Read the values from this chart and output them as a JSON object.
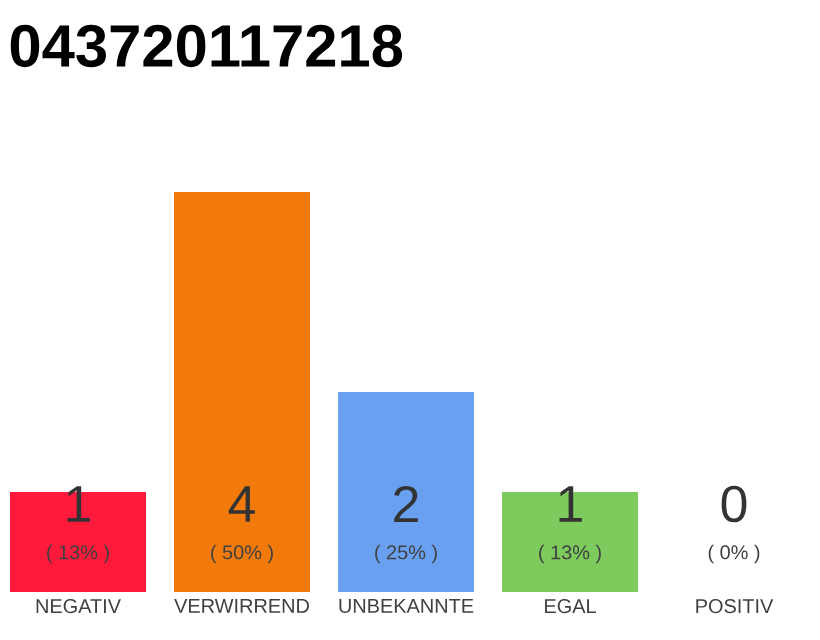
{
  "chart_data": {
    "type": "bar",
    "title": "043720117218",
    "categories": [
      "NEGATIV",
      "VERWIRREND",
      "UNBEKANNTE",
      "EGAL",
      "POSITIV"
    ],
    "values": [
      1,
      4,
      2,
      1,
      0
    ],
    "colors": [
      "#ff1a3c",
      "#f17a0b",
      "#6aa0f0",
      "#7ccb5c",
      null
    ],
    "ylim": [
      0,
      4
    ],
    "tick_labels": "x",
    "data_labels": true,
    "annotations": [
      "( 13% )",
      "( 50% )",
      "( 25% )",
      "( 13% )",
      "( 0% )"
    ]
  }
}
